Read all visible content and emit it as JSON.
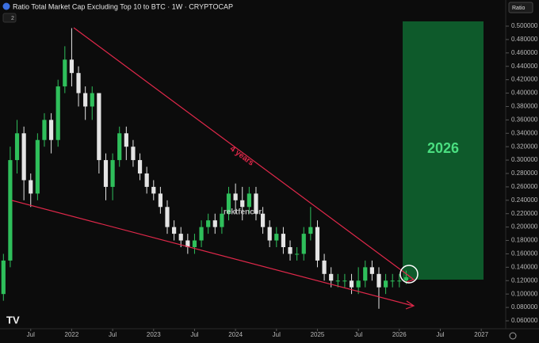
{
  "chart_data": {
    "type": "candlestick",
    "title": "Ratio Total Market Cap Excluding Top 10 to BTC · 1W · CRYPTOCAP",
    "indicator_count": "2",
    "scale_label": "Ratio",
    "watermark": "rektfencer",
    "annotations": [
      "4 years",
      "2026"
    ],
    "up_color": "#2fbf5b",
    "down_color": "#e4e4e4",
    "xlim": [
      -0.5,
      73
    ],
    "xticks": [
      {
        "value": 4,
        "label": "Jul"
      },
      {
        "value": 10,
        "label": "2022"
      },
      {
        "value": 16,
        "label": "Jul"
      },
      {
        "value": 22,
        "label": "2023"
      },
      {
        "value": 28,
        "label": "Jul"
      },
      {
        "value": 34,
        "label": "2024"
      },
      {
        "value": 40,
        "label": "Jul"
      },
      {
        "value": 46,
        "label": "2025"
      },
      {
        "value": 52,
        "label": "Jul"
      },
      {
        "value": 58,
        "label": "2026"
      },
      {
        "value": 64,
        "label": "Jul"
      },
      {
        "value": 70,
        "label": "2027"
      }
    ],
    "ylim": [
      0.06,
      0.5
    ],
    "yticks": [
      {
        "value": 0.5,
        "label": "0.500000"
      },
      {
        "value": 0.48,
        "label": "0.480000"
      },
      {
        "value": 0.46,
        "label": "0.460000"
      },
      {
        "value": 0.44,
        "label": "0.440000"
      },
      {
        "value": 0.42,
        "label": "0.420000"
      },
      {
        "value": 0.4,
        "label": "0.400000"
      },
      {
        "value": 0.38,
        "label": "0.380000"
      },
      {
        "value": 0.36,
        "label": "0.360000"
      },
      {
        "value": 0.34,
        "label": "0.340000"
      },
      {
        "value": 0.32,
        "label": "0.320000"
      },
      {
        "value": 0.3,
        "label": "0.300000"
      },
      {
        "value": 0.28,
        "label": "0.280000"
      },
      {
        "value": 0.26,
        "label": "0.260000"
      },
      {
        "value": 0.24,
        "label": "0.240000"
      },
      {
        "value": 0.22,
        "label": "0.220000"
      },
      {
        "value": 0.2,
        "label": "0.200000"
      },
      {
        "value": 0.18,
        "label": "0.180000"
      },
      {
        "value": 0.16,
        "label": "0.160000"
      },
      {
        "value": 0.14,
        "label": "0.140000"
      },
      {
        "value": 0.12,
        "label": "0.120000"
      },
      {
        "value": 0.1,
        "label": "0.100000"
      },
      {
        "value": 0.08,
        "label": "0.080000"
      },
      {
        "value": 0.06,
        "label": "0.060000"
      }
    ],
    "open": [
      0.1,
      0.15,
      0.3,
      0.34,
      0.27,
      0.25,
      0.33,
      0.36,
      0.33,
      0.41,
      0.45,
      0.43,
      0.4,
      0.38,
      0.4,
      0.3,
      0.26,
      0.3,
      0.34,
      0.32,
      0.3,
      0.28,
      0.26,
      0.25,
      0.23,
      0.2,
      0.19,
      0.18,
      0.17,
      0.18,
      0.2,
      0.21,
      0.2,
      0.22,
      0.25,
      0.24,
      0.23,
      0.25,
      0.22,
      0.2,
      0.18,
      0.19,
      0.17,
      0.16,
      0.16,
      0.19,
      0.2,
      0.15,
      0.13,
      0.12,
      0.12,
      0.12,
      0.11,
      0.12,
      0.14,
      0.13,
      0.11,
      0.12,
      0.12,
      0.12
    ],
    "high": [
      0.16,
      0.32,
      0.36,
      0.35,
      0.28,
      0.34,
      0.37,
      0.37,
      0.42,
      0.47,
      0.497,
      0.44,
      0.41,
      0.41,
      0.4,
      0.31,
      0.31,
      0.35,
      0.35,
      0.33,
      0.31,
      0.29,
      0.27,
      0.26,
      0.24,
      0.21,
      0.2,
      0.19,
      0.19,
      0.21,
      0.22,
      0.22,
      0.23,
      0.26,
      0.265,
      0.26,
      0.26,
      0.26,
      0.23,
      0.21,
      0.2,
      0.2,
      0.18,
      0.17,
      0.2,
      0.23,
      0.21,
      0.16,
      0.14,
      0.13,
      0.13,
      0.13,
      0.14,
      0.15,
      0.15,
      0.14,
      0.13,
      0.13,
      0.13,
      0.135
    ],
    "low": [
      0.09,
      0.14,
      0.28,
      0.24,
      0.23,
      0.24,
      0.32,
      0.31,
      0.32,
      0.4,
      0.41,
      0.38,
      0.36,
      0.36,
      0.28,
      0.24,
      0.24,
      0.29,
      0.3,
      0.29,
      0.27,
      0.25,
      0.24,
      0.22,
      0.19,
      0.18,
      0.17,
      0.16,
      0.16,
      0.17,
      0.19,
      0.19,
      0.19,
      0.21,
      0.22,
      0.21,
      0.22,
      0.21,
      0.19,
      0.17,
      0.17,
      0.16,
      0.15,
      0.15,
      0.15,
      0.18,
      0.14,
      0.12,
      0.11,
      0.11,
      0.11,
      0.1,
      0.1,
      0.11,
      0.12,
      0.078,
      0.1,
      0.11,
      0.11,
      0.115
    ],
    "close": [
      0.15,
      0.3,
      0.34,
      0.27,
      0.25,
      0.33,
      0.36,
      0.33,
      0.41,
      0.45,
      0.43,
      0.4,
      0.38,
      0.4,
      0.3,
      0.26,
      0.3,
      0.34,
      0.32,
      0.3,
      0.28,
      0.26,
      0.25,
      0.23,
      0.2,
      0.19,
      0.18,
      0.17,
      0.18,
      0.2,
      0.21,
      0.2,
      0.22,
      0.25,
      0.24,
      0.23,
      0.25,
      0.22,
      0.2,
      0.18,
      0.19,
      0.17,
      0.16,
      0.16,
      0.19,
      0.2,
      0.15,
      0.13,
      0.12,
      0.12,
      0.12,
      0.11,
      0.12,
      0.14,
      0.13,
      0.11,
      0.12,
      0.12,
      0.12,
      0.125
    ]
  }
}
